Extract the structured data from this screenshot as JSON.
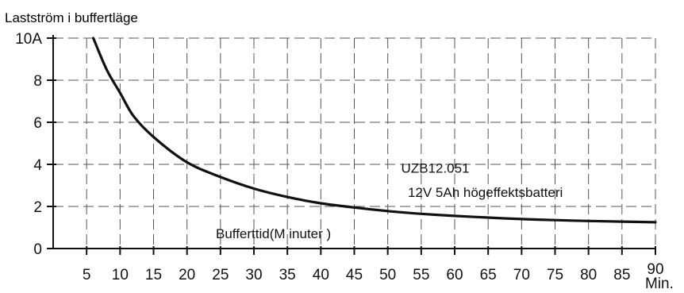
{
  "chart_data": {
    "type": "line",
    "title": "",
    "ylabel": "Lastström i buffertläge",
    "xlabel": "Bufferttid(Minuter)",
    "xlabel_display": "Bufferttid(M inuter )",
    "x_unit": "Min.",
    "xlim": [
      0,
      90
    ],
    "ylim": [
      0,
      10
    ],
    "x_ticks": [
      5,
      10,
      15,
      20,
      25,
      30,
      35,
      40,
      45,
      50,
      55,
      60,
      65,
      70,
      75,
      80,
      85,
      90
    ],
    "y_ticks": [
      {
        "value": 0,
        "label": "0"
      },
      {
        "value": 2,
        "label": "2"
      },
      {
        "value": 4,
        "label": "4"
      },
      {
        "value": 6,
        "label": "6"
      },
      {
        "value": 8,
        "label": "8"
      },
      {
        "value": 10,
        "label": "10A"
      }
    ],
    "grid": true,
    "grid_style": "dashed",
    "series": [
      {
        "x": [
          6,
          8,
          10,
          12,
          15,
          20,
          25,
          30,
          35,
          40,
          45,
          50,
          55,
          60,
          65,
          70,
          75,
          80,
          85,
          90
        ],
        "y": [
          10.0,
          8.5,
          7.4,
          6.3,
          5.3,
          4.1,
          3.4,
          2.85,
          2.45,
          2.15,
          1.95,
          1.78,
          1.65,
          1.55,
          1.47,
          1.4,
          1.35,
          1.31,
          1.28,
          1.25
        ]
      }
    ],
    "annotations": [
      {
        "text": "UZB12.051",
        "x": 52,
        "y": 3.6
      },
      {
        "text": "12V 5Ah högeffektsbatteri",
        "x": 53,
        "y": 2.45
      }
    ]
  }
}
